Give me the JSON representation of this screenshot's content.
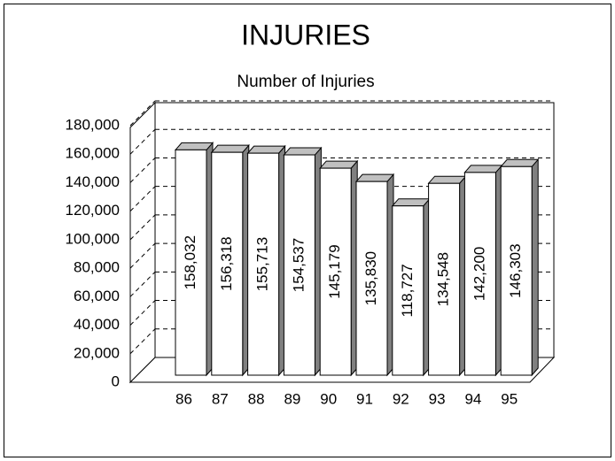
{
  "chart_data": {
    "type": "bar3d",
    "title": "INJURIES",
    "subtitle": "Number of Injuries",
    "categories": [
      "86",
      "87",
      "88",
      "89",
      "90",
      "91",
      "92",
      "93",
      "94",
      "95"
    ],
    "values": [
      158032,
      156318,
      155713,
      154537,
      145179,
      135830,
      118727,
      134548,
      142200,
      146303
    ],
    "value_labels": [
      "158,032",
      "156,318",
      "155,713",
      "154,537",
      "145,179",
      "135,830",
      "118,727",
      "134,548",
      "142,200",
      "146,303"
    ],
    "color": "#ffffff",
    "ylim": [
      0,
      180000
    ],
    "yticks": [
      0,
      {
        "value": 20000,
        "label": "20,000"
      },
      {
        "value": 40000,
        "label": "40,000"
      },
      {
        "value": 60000,
        "label": "60,000"
      },
      {
        "value": 80000,
        "label": "80,000"
      },
      {
        "value": 100000,
        "label": "100,000"
      },
      {
        "value": 120000,
        "label": "120,000"
      },
      {
        "value": 140000,
        "label": "140,000"
      },
      {
        "value": 160000,
        "label": "160,000"
      },
      {
        "value": 180000,
        "label": "180,000"
      }
    ],
    "grid": true
  }
}
